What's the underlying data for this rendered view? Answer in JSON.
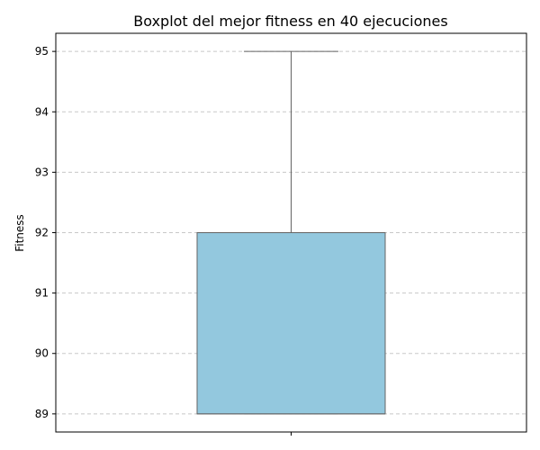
{
  "chart_data": {
    "type": "box",
    "title": "Boxplot del mejor fitness en 40 ejecuciones",
    "xlabel": "",
    "ylabel": "Fitness",
    "ylim": [
      88.7,
      95.3
    ],
    "yticks": [
      89,
      90,
      91,
      92,
      93,
      94,
      95
    ],
    "grid": "y-dashed",
    "box": {
      "min": 89,
      "q1": 89,
      "median": 89,
      "q3": 92,
      "max": 95
    },
    "colors": {
      "box_fill": "#93c8de",
      "box_edge": "#646464",
      "grid": "#c8c8c8"
    }
  }
}
